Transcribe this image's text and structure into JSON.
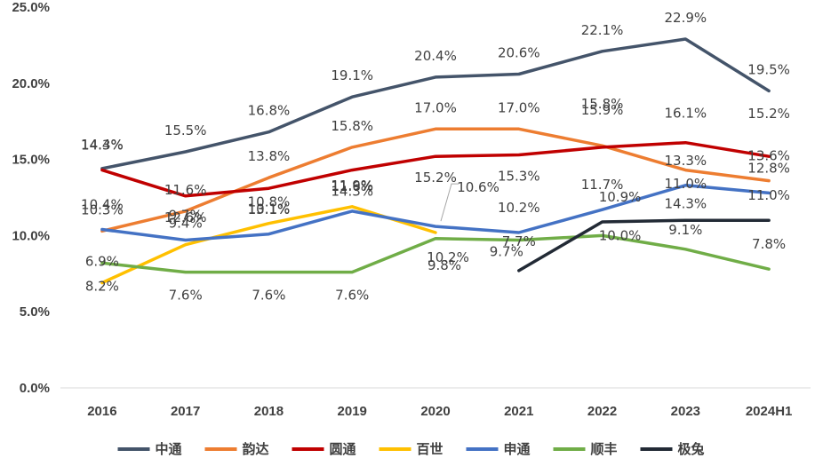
{
  "chart_data": {
    "type": "line",
    "categories": [
      "2016",
      "2017",
      "2018",
      "2019",
      "2020",
      "2021",
      "2022",
      "2023",
      "2024H1"
    ],
    "y_ticks": [
      "0.0%",
      "5.0%",
      "10.0%",
      "15.0%",
      "20.0%",
      "25.0%"
    ],
    "ylim": [
      0,
      25
    ],
    "grid": false,
    "legend_position": "bottom",
    "series": [
      {
        "name": "中通",
        "color": "#44546A",
        "values": [
          14.4,
          15.5,
          16.8,
          19.1,
          20.4,
          20.6,
          22.1,
          22.9,
          19.5
        ],
        "labels": [
          "14.4%",
          "15.5%",
          "16.8%",
          "19.1%",
          "20.4%",
          "20.6%",
          "22.1%",
          "22.9%",
          "19.5%"
        ]
      },
      {
        "name": "韵达",
        "color": "#ED7D31",
        "values": [
          10.3,
          11.6,
          13.8,
          15.8,
          17.0,
          17.0,
          15.9,
          14.3,
          13.6
        ],
        "labels": [
          "10.3%",
          "11.6%",
          "13.8%",
          "15.8%",
          "17.0%",
          "17.0%",
          "15.9%",
          "14.3%",
          "13.6%"
        ]
      },
      {
        "name": "圆通",
        "color": "#C00000",
        "values": [
          14.3,
          12.6,
          13.1,
          14.3,
          15.2,
          15.3,
          15.8,
          16.1,
          15.2
        ],
        "labels": [
          "14.3%",
          "12.6%",
          "13.1%",
          "14.3%",
          "15.2%",
          "15.3%",
          "15.8%",
          "16.1%",
          "15.2%"
        ]
      },
      {
        "name": "百世",
        "color": "#FFC000",
        "values": [
          6.9,
          9.4,
          10.8,
          11.9,
          10.2,
          null,
          null,
          null,
          null
        ],
        "labels": [
          "6.9%",
          "9.4%",
          "10.8%",
          "11.9%",
          "10.2%",
          null,
          null,
          null,
          null
        ]
      },
      {
        "name": "申通",
        "color": "#4472C4",
        "values": [
          10.4,
          9.7,
          10.1,
          11.6,
          10.6,
          10.2,
          11.7,
          13.3,
          12.8
        ],
        "labels": [
          "10.4%",
          "9.7%",
          "10.1%",
          "11.6%",
          "10.6%",
          "10.2%",
          "11.7%",
          "13.3%",
          "12.8%"
        ]
      },
      {
        "name": "顺丰",
        "color": "#70AD47",
        "values": [
          8.2,
          7.6,
          7.6,
          7.6,
          9.8,
          9.7,
          10.0,
          9.1,
          7.8
        ],
        "labels": [
          "8.2%",
          "7.6%",
          "7.6%",
          "7.6%",
          "9.8%",
          "9.7%",
          "10.0%",
          "9.1%",
          "7.8%"
        ]
      },
      {
        "name": "极兔",
        "color": "#222A35",
        "values": [
          null,
          null,
          null,
          null,
          null,
          7.7,
          10.9,
          11.0,
          11.0
        ],
        "labels": [
          null,
          null,
          null,
          null,
          null,
          "7.7%",
          "10.9%",
          "11.0%",
          "11.0%"
        ]
      }
    ]
  }
}
